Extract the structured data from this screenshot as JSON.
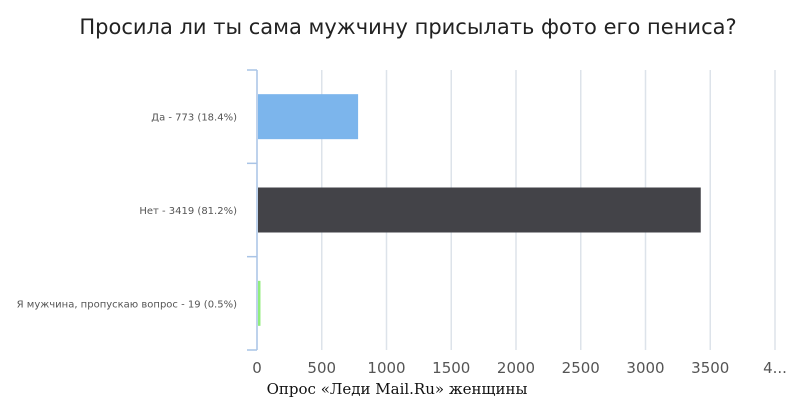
{
  "chart_data": {
    "type": "bar",
    "orientation": "horizontal",
    "title": "Просила ли ты сама мужчину присылать фото его пениса?",
    "categories": [
      "Да - 773 (18.4%)",
      "Нет - 3419 (81.2%)",
      "Я мужчина, пропускаю вопрос - 19 (0.5%)"
    ],
    "values": [
      773,
      3419,
      19
    ],
    "colors": [
      "#7cb5ec",
      "#434348",
      "#90ed7d"
    ],
    "x_ticks": [
      "0",
      "500",
      "1000",
      "1500",
      "2000",
      "2500",
      "3000",
      "3500",
      "4..."
    ],
    "xlim": [
      0,
      4000
    ],
    "xlabel": "",
    "ylabel": "",
    "grid": true,
    "legend": "none"
  },
  "source": "Опрос «Леди Mail.Ru» женщины"
}
